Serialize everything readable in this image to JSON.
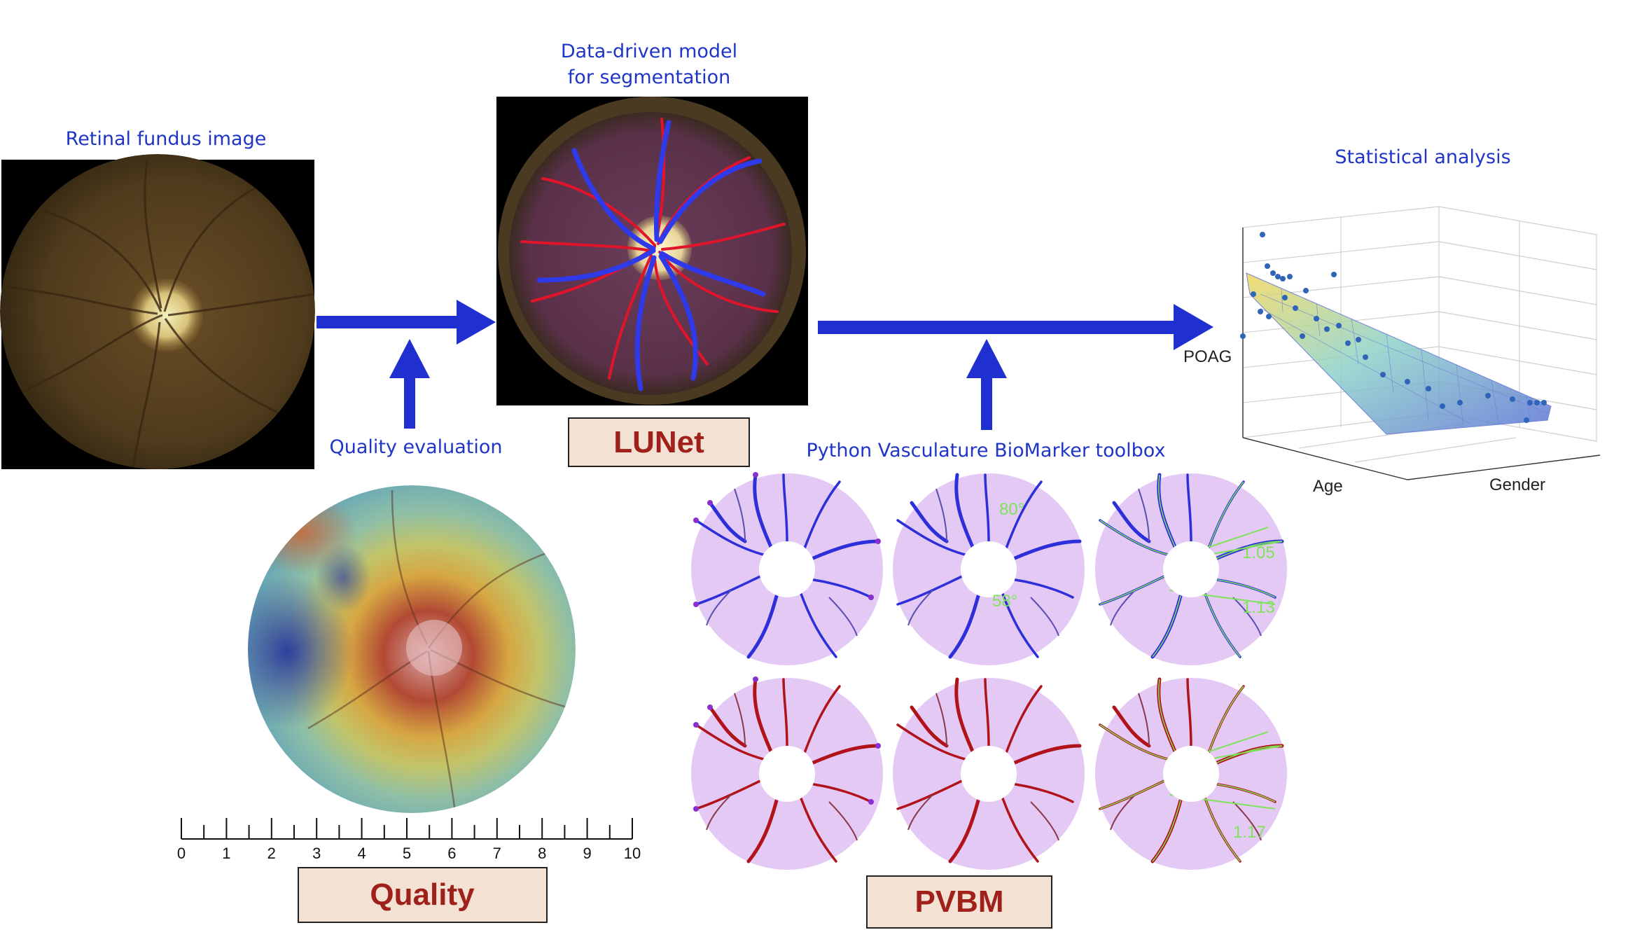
{
  "captions": {
    "fundus": "Retinal fundus image",
    "model_line1": "Data-driven model",
    "model_line2": "for segmentation",
    "quality_eval": "Quality evaluation",
    "toolbox": "Python Vasculature BioMarker toolbox",
    "stats": "Statistical analysis"
  },
  "boxes": {
    "lunet": "LUNet",
    "quality": "Quality",
    "pvbm": "PVBM"
  },
  "stats_plot": {
    "z_label": "POAG",
    "x_label": "Age",
    "y_label": "Gender"
  },
  "scale": {
    "ticks": [
      "0",
      "1",
      "2",
      "3",
      "4",
      "5",
      "6",
      "7",
      "8",
      "9",
      "10"
    ]
  },
  "measurements": {
    "angle_top": "80°",
    "angle_bottom": "58°",
    "ratio_top_1": "1.05",
    "ratio_top_2": "1.13",
    "ratio_bottom": "1.17"
  },
  "colors": {
    "arrow": "#1f2fd0",
    "caption": "#1f35c8",
    "box_fill": "#f3e2d4",
    "box_text": "#a0211b",
    "artery": "#b0141a",
    "vein": "#2d2fd8",
    "disk_bg": "#e4c9f5",
    "measurement": "#7ee35a"
  }
}
